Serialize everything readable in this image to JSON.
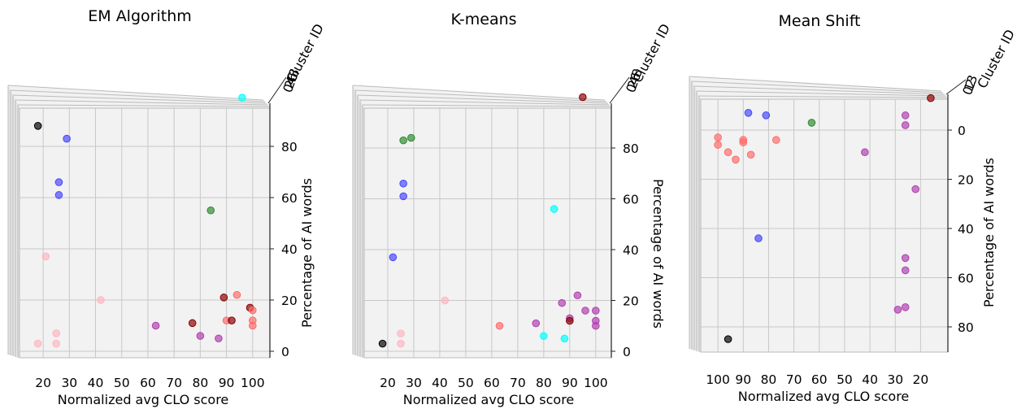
{
  "figure": {
    "colors": {
      "cluster_0": "#ff6b6b",
      "cluster_1": "#4747ff",
      "cluster_2": "#2e8b2e",
      "cluster_3": "#b040b0",
      "cluster_4": "#00ffff",
      "cluster_5": "#ffb6c1",
      "cluster_6": "#8b0000",
      "cluster_7": "#000000"
    }
  },
  "chart_data": [
    {
      "type": "scatter",
      "title": "EM Algorithm",
      "xlabel": "Normalized avg CLO score",
      "ylabel": "Percentage of AI words",
      "zlabel": "Cluster ID",
      "xticks": [
        "20",
        "30",
        "40",
        "50",
        "60",
        "70",
        "80",
        "90",
        "100"
      ],
      "yticks": [
        "0",
        "20",
        "40",
        "60",
        "80"
      ],
      "zticks": [
        "0",
        "2",
        "4",
        "6",
        "8"
      ],
      "xlim": [
        15,
        101
      ],
      "ylim": [
        -5,
        100
      ],
      "view": "normal",
      "grid": true,
      "points": [
        {
          "x": 96,
          "y": 99,
          "c": 4
        },
        {
          "x": 18,
          "y": 88,
          "c": 7
        },
        {
          "x": 29,
          "y": 83,
          "c": 1
        },
        {
          "x": 26,
          "y": 66,
          "c": 1
        },
        {
          "x": 26,
          "y": 61,
          "c": 1
        },
        {
          "x": 84,
          "y": 55,
          "c": 2
        },
        {
          "x": 21,
          "y": 37,
          "c": 5
        },
        {
          "x": 94,
          "y": 22,
          "c": 0
        },
        {
          "x": 89,
          "y": 21,
          "c": 6
        },
        {
          "x": 42,
          "y": 20,
          "c": 5
        },
        {
          "x": 99,
          "y": 17,
          "c": 6
        },
        {
          "x": 100,
          "y": 16,
          "c": 0
        },
        {
          "x": 90,
          "y": 12,
          "c": 0
        },
        {
          "x": 92,
          "y": 12,
          "c": 6
        },
        {
          "x": 100,
          "y": 12,
          "c": 0
        },
        {
          "x": 77,
          "y": 11,
          "c": 6
        },
        {
          "x": 100,
          "y": 10,
          "c": 0
        },
        {
          "x": 63,
          "y": 10,
          "c": 3
        },
        {
          "x": 25,
          "y": 7,
          "c": 5
        },
        {
          "x": 80,
          "y": 6,
          "c": 3
        },
        {
          "x": 87,
          "y": 5,
          "c": 3
        },
        {
          "x": 18,
          "y": 3,
          "c": 5
        },
        {
          "x": 25,
          "y": 3,
          "c": 5
        }
      ]
    },
    {
      "type": "scatter",
      "title": "K-means",
      "xlabel": "Normalized avg CLO score",
      "ylabel": "Percentage of AI words",
      "zlabel": "Cluster ID",
      "xticks": [
        "20",
        "30",
        "40",
        "50",
        "60",
        "70",
        "80",
        "90",
        "100"
      ],
      "yticks": [
        "0",
        "20",
        "40",
        "60",
        "80"
      ],
      "zticks": [
        "0",
        "2",
        "4",
        "6",
        "8"
      ],
      "xlim": [
        15,
        101
      ],
      "ylim": [
        -5,
        100
      ],
      "view": "normal",
      "grid": true,
      "points": [
        {
          "x": 95,
          "y": 100,
          "c": 6
        },
        {
          "x": 26,
          "y": 83,
          "c": 2
        },
        {
          "x": 29,
          "y": 84,
          "c": 2
        },
        {
          "x": 26,
          "y": 66,
          "c": 1
        },
        {
          "x": 26,
          "y": 61,
          "c": 1
        },
        {
          "x": 84,
          "y": 56,
          "c": 4
        },
        {
          "x": 22,
          "y": 37,
          "c": 1
        },
        {
          "x": 42,
          "y": 20,
          "c": 5
        },
        {
          "x": 93,
          "y": 22,
          "c": 3
        },
        {
          "x": 87,
          "y": 19,
          "c": 3
        },
        {
          "x": 100,
          "y": 16,
          "c": 3
        },
        {
          "x": 96,
          "y": 16,
          "c": 3
        },
        {
          "x": 90,
          "y": 13,
          "c": 3
        },
        {
          "x": 90,
          "y": 12,
          "c": 6
        },
        {
          "x": 100,
          "y": 12,
          "c": 3
        },
        {
          "x": 100,
          "y": 10,
          "c": 3
        },
        {
          "x": 77,
          "y": 11,
          "c": 3
        },
        {
          "x": 63,
          "y": 10,
          "c": 0
        },
        {
          "x": 80,
          "y": 6,
          "c": 4
        },
        {
          "x": 88,
          "y": 5,
          "c": 4
        },
        {
          "x": 25,
          "y": 7,
          "c": 5
        },
        {
          "x": 18,
          "y": 3,
          "c": 7
        },
        {
          "x": 25,
          "y": 3,
          "c": 5
        }
      ]
    },
    {
      "type": "scatter",
      "title": "Mean Shift",
      "xlabel": "Normalized avg CLO score",
      "ylabel": "Percentage of AI words",
      "zlabel": "Cluster ID",
      "xticks": [
        "100",
        "90",
        "80",
        "70",
        "60",
        "50",
        "40",
        "30",
        "20"
      ],
      "yticks": [
        "0",
        "20",
        "40",
        "60",
        "80"
      ],
      "zticks": [
        "0",
        "1",
        "2",
        "3"
      ],
      "xlim": [
        101,
        15
      ],
      "ylim": [
        -13,
        96
      ],
      "view": "reversed",
      "grid": true,
      "points": [
        {
          "x": 16,
          "y": -13,
          "c": 6
        },
        {
          "x": 88,
          "y": -7,
          "c": 1
        },
        {
          "x": 81,
          "y": -6,
          "c": 1
        },
        {
          "x": 63,
          "y": -3,
          "c": 2
        },
        {
          "x": 26,
          "y": -6,
          "c": 3
        },
        {
          "x": 26,
          "y": -2,
          "c": 3
        },
        {
          "x": 100,
          "y": 3,
          "c": 0
        },
        {
          "x": 100,
          "y": 6,
          "c": 0
        },
        {
          "x": 90,
          "y": 4,
          "c": 0
        },
        {
          "x": 90,
          "y": 5,
          "c": 0
        },
        {
          "x": 77,
          "y": 4,
          "c": 0
        },
        {
          "x": 96,
          "y": 9,
          "c": 0
        },
        {
          "x": 93,
          "y": 12,
          "c": 0
        },
        {
          "x": 87,
          "y": 10,
          "c": 0
        },
        {
          "x": 42,
          "y": 9,
          "c": 3
        },
        {
          "x": 22,
          "y": 24,
          "c": 3
        },
        {
          "x": 84,
          "y": 44,
          "c": 1
        },
        {
          "x": 26,
          "y": 52,
          "c": 3
        },
        {
          "x": 26,
          "y": 57,
          "c": 3
        },
        {
          "x": 29,
          "y": 73,
          "c": 3
        },
        {
          "x": 26,
          "y": 72,
          "c": 3
        },
        {
          "x": 96,
          "y": 85,
          "c": 7
        }
      ]
    }
  ]
}
